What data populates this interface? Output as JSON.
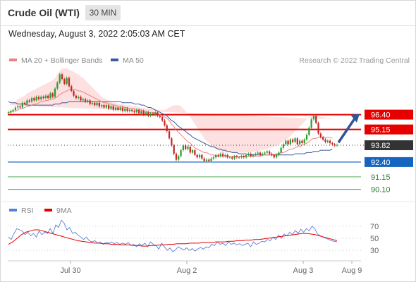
{
  "header": {
    "title": "Crude Oil (WTI)",
    "timeframe": "30 MIN"
  },
  "date_text": "Wednesday, August 3, 2022 2:05:03 AM CET",
  "copyright": "Research © 2022 Trading Central",
  "colors": {
    "ma20": "#f08080",
    "ma50": "#3d5a99",
    "band": "#fde0e0",
    "resistance": "#e60000",
    "support": "#1565c0",
    "target": "#4caf50",
    "current": "#333333",
    "rsi": "#5b7fd6",
    "rsi_ma": "#e60000",
    "arrow": "#2f5597"
  },
  "chart_data": [
    {
      "type": "candlestick",
      "legend": [
        {
          "label": "MA 20 + Bollinger Bands",
          "color": "#f08080"
        },
        {
          "label": "MA 50",
          "color": "#3d5a99"
        }
      ],
      "ylim": [
        89.6,
        100.3
      ],
      "x_ticks": [
        "Jul 30",
        "Aug 2",
        "Aug 3",
        "Aug 9"
      ],
      "levels": [
        {
          "value": 96.4,
          "label": "96.40",
          "kind": "resistance"
        },
        {
          "value": 95.15,
          "label": "95.15",
          "kind": "resistance"
        },
        {
          "value": 93.82,
          "label": "93.82",
          "kind": "current"
        },
        {
          "value": 92.4,
          "label": "92.40",
          "kind": "support"
        },
        {
          "value": 91.15,
          "label": "91.15",
          "kind": "target"
        },
        {
          "value": 90.1,
          "label": "90.10",
          "kind": "target"
        }
      ],
      "close": [
        96.6,
        96.7,
        96.8,
        97.0,
        97.1,
        97.0,
        97.4,
        97.3,
        97.6,
        97.5,
        97.8,
        97.6,
        97.9,
        97.7,
        97.9,
        97.8,
        98.0,
        97.8,
        98.2,
        97.9,
        98.6,
        99.1,
        99.8,
        99.4,
        99.0,
        99.5,
        98.8,
        98.4,
        98.0,
        97.8,
        97.9,
        97.6,
        97.7,
        97.5,
        97.6,
        97.3,
        97.4,
        97.2,
        97.4,
        97.1,
        97.2,
        97.0,
        97.2,
        96.9,
        97.1,
        96.8,
        97.0,
        96.8,
        97.0,
        96.7,
        96.9,
        96.7,
        96.8,
        96.7,
        96.6,
        96.8,
        96.5,
        96.7,
        96.4,
        96.6,
        96.3,
        96.5,
        96.4,
        96.6,
        96.3,
        96.2,
        95.9,
        95.5,
        95.0,
        94.4,
        93.8,
        93.1,
        92.6,
        92.9,
        93.4,
        93.8,
        93.5,
        93.7,
        93.2,
        93.4,
        93.0,
        92.8,
        93.0,
        92.7,
        92.5,
        92.6,
        92.5,
        92.7,
        92.8,
        93.0,
        92.9,
        93.1,
        92.9,
        93.0,
        92.8,
        92.8,
        92.7,
        92.9,
        92.8,
        92.8,
        92.9,
        92.8,
        93.0,
        93.1,
        92.9,
        93.0,
        93.1,
        93.2,
        93.0,
        93.1,
        93.2,
        93.3,
        93.1,
        93.0,
        92.8,
        93.0,
        93.2,
        93.6,
        93.9,
        94.2,
        93.9,
        94.3,
        94.1,
        94.4,
        93.9,
        94.2,
        94.0,
        94.3,
        94.7,
        95.3,
        96.0,
        96.3,
        95.7,
        94.8,
        94.5,
        94.3,
        94.1,
        94.2,
        94.0,
        93.9,
        93.8,
        93.85
      ],
      "ma20": [
        96.6,
        96.6,
        96.7,
        96.7,
        96.8,
        96.9,
        96.9,
        97.0,
        97.1,
        97.1,
        97.2,
        97.3,
        97.3,
        97.4,
        97.5,
        97.5,
        97.6,
        97.6,
        97.7,
        97.7,
        97.8,
        97.9,
        98.1,
        98.2,
        98.3,
        98.4,
        98.5,
        98.5,
        98.5,
        98.5,
        98.4,
        98.4,
        98.3,
        98.2,
        98.1,
        98.0,
        97.9,
        97.8,
        97.7,
        97.6,
        97.5,
        97.4,
        97.4,
        97.3,
        97.3,
        97.2,
        97.2,
        97.1,
        97.1,
        97.1,
        97.0,
        97.0,
        96.9,
        96.9,
        96.9,
        96.8,
        96.8,
        96.8,
        96.7,
        96.7,
        96.6,
        96.6,
        96.6,
        96.5,
        96.5,
        96.4,
        96.3,
        96.2,
        96.1,
        95.9,
        95.6,
        95.4,
        95.1,
        94.9,
        94.7,
        94.5,
        94.3,
        94.1,
        94.0,
        93.8,
        93.6,
        93.5,
        93.4,
        93.3,
        93.2,
        93.2,
        93.1,
        93.0,
        93.0,
        92.9,
        92.9,
        92.9,
        92.9,
        92.9,
        92.9,
        92.9,
        92.9,
        92.9,
        92.9,
        92.9,
        92.9,
        92.9,
        92.9,
        92.9,
        92.9,
        92.9,
        92.9,
        92.9,
        92.9,
        93.0,
        93.0,
        93.0,
        93.0,
        93.0,
        93.0,
        93.1,
        93.1,
        93.2,
        93.2,
        93.3,
        93.4,
        93.5,
        93.5,
        93.6,
        93.7,
        93.7,
        93.8,
        93.9,
        94.0,
        94.1,
        94.3,
        94.4,
        94.4,
        94.5,
        94.5,
        94.5,
        94.5,
        94.5,
        94.5,
        94.4
      ],
      "ma50": [
        97.5,
        97.4,
        97.4,
        97.4,
        97.3,
        97.3,
        97.3,
        97.3,
        97.2,
        97.2,
        97.2,
        97.2,
        97.2,
        97.2,
        97.2,
        97.2,
        97.2,
        97.2,
        97.2,
        97.2,
        97.3,
        97.3,
        97.3,
        97.4,
        97.4,
        97.4,
        97.5,
        97.5,
        97.5,
        97.5,
        97.5,
        97.5,
        97.5,
        97.5,
        97.5,
        97.5,
        97.5,
        97.5,
        97.5,
        97.5,
        97.5,
        97.5,
        97.5,
        97.5,
        97.5,
        97.5,
        97.5,
        97.5,
        97.5,
        97.4,
        97.4,
        97.4,
        97.4,
        97.4,
        97.3,
        97.3,
        97.3,
        97.2,
        97.2,
        97.1,
        97.0,
        97.0,
        96.9,
        96.8,
        96.7,
        96.6,
        96.5,
        96.4,
        96.3,
        96.1,
        95.9,
        95.8,
        95.6,
        95.4,
        95.3,
        95.1,
        95.0,
        94.8,
        94.7,
        94.5,
        94.4,
        94.3,
        94.2,
        94.1,
        94.0,
        93.9,
        93.8,
        93.7,
        93.7,
        93.6,
        93.5,
        93.5,
        93.4,
        93.4,
        93.3,
        93.3,
        93.2,
        93.2,
        93.2,
        93.1,
        93.1,
        93.1,
        93.1,
        93.0,
        93.0,
        93.0,
        93.0,
        93.0,
        93.0,
        93.0,
        93.0,
        93.0,
        93.0,
        93.0,
        93.0,
        93.0,
        93.0,
        93.0,
        93.0,
        93.0,
        93.0,
        93.0,
        93.0,
        93.1,
        93.1,
        93.1,
        93.1,
        93.1,
        93.2,
        93.2,
        93.2,
        93.3,
        93.3,
        93.3,
        93.4,
        93.4,
        93.4,
        93.4,
        93.4,
        93.5
      ],
      "bb_upper": [
        97.2,
        97.3,
        97.4,
        97.5,
        97.7,
        97.8,
        97.9,
        98.0,
        98.2,
        98.3,
        98.4,
        98.5,
        98.6,
        98.7,
        98.8,
        98.9,
        99.0,
        99.1,
        99.2,
        99.3,
        99.5,
        99.8,
        100.1,
        100.3,
        100.3,
        100.3,
        100.2,
        100.1,
        100.0,
        99.9,
        99.8,
        99.6,
        99.5,
        99.3,
        99.1,
        98.9,
        98.7,
        98.5,
        98.3,
        98.1,
        97.9,
        97.8,
        97.7,
        97.6,
        97.5,
        97.4,
        97.4,
        97.3,
        97.3,
        97.3,
        97.2,
        97.2,
        97.2,
        97.1,
        97.1,
        97.1,
        97.0,
        97.0,
        97.0,
        96.9,
        96.9,
        96.9,
        96.9,
        96.9,
        96.8,
        96.8,
        96.8,
        96.8,
        96.9,
        97.0,
        97.1,
        97.2,
        97.2,
        97.2,
        97.1,
        96.9,
        96.7,
        96.4,
        96.2,
        95.9,
        95.6,
        95.3,
        95.0,
        94.7,
        94.4,
        94.2,
        94.0,
        93.8,
        93.6,
        93.5,
        93.4,
        93.3,
        93.2,
        93.2,
        93.2,
        93.2,
        93.2,
        93.2,
        93.2,
        93.2,
        93.2,
        93.2,
        93.2,
        93.2,
        93.2,
        93.3,
        93.3,
        93.3,
        93.4,
        93.4,
        93.5,
        93.5,
        93.6,
        93.7,
        93.7,
        93.8,
        93.9,
        94.0,
        94.1,
        94.3,
        94.4,
        94.6,
        94.8,
        95.0,
        95.2,
        95.4,
        95.6,
        95.8,
        96.0,
        96.2,
        96.3,
        96.3,
        96.3,
        96.3,
        96.2,
        96.2,
        96.1,
        96.1,
        96.1,
        96.0
      ],
      "bb_lower": [
        96.0,
        95.9,
        96.0,
        95.9,
        95.9,
        96.0,
        95.9,
        96.0,
        96.0,
        95.9,
        96.0,
        96.1,
        96.0,
        96.1,
        96.2,
        96.1,
        96.2,
        96.1,
        96.2,
        96.1,
        96.1,
        96.0,
        96.1,
        96.1,
        96.3,
        96.5,
        96.8,
        96.9,
        97.0,
        97.1,
        97.0,
        97.2,
        97.1,
        97.1,
        97.1,
        97.1,
        97.1,
        97.1,
        97.1,
        97.1,
        97.1,
        97.0,
        97.1,
        97.0,
        97.1,
        97.0,
        97.0,
        96.9,
        96.9,
        96.9,
        96.8,
        96.8,
        96.6,
        96.7,
        96.7,
        96.5,
        96.6,
        96.6,
        96.4,
        96.5,
        96.3,
        96.3,
        96.3,
        96.1,
        96.2,
        96.0,
        95.8,
        95.6,
        95.3,
        94.8,
        94.1,
        93.6,
        93.0,
        92.6,
        92.3,
        92.1,
        91.9,
        91.8,
        91.8,
        91.7,
        91.6,
        91.7,
        91.8,
        91.9,
        92.0,
        92.2,
        92.2,
        92.2,
        92.4,
        92.3,
        92.4,
        92.5,
        92.6,
        92.6,
        92.6,
        92.6,
        92.6,
        92.6,
        92.6,
        92.6,
        92.6,
        92.6,
        92.6,
        92.6,
        92.6,
        92.5,
        92.5,
        92.5,
        92.4,
        92.6,
        92.5,
        92.5,
        92.4,
        92.3,
        92.3,
        92.4,
        92.3,
        92.4,
        92.3,
        92.3,
        92.4,
        92.4,
        92.2,
        92.2,
        92.2,
        92.0,
        92.0,
        92.0,
        92.0,
        92.0,
        92.3,
        92.6,
        92.5,
        92.7,
        92.7,
        92.7,
        92.8,
        92.8,
        92.9,
        92.8
      ]
    },
    {
      "type": "line",
      "legend": [
        {
          "label": "RSI",
          "color": "#5b7fd6"
        },
        {
          "label": "9MA",
          "color": "#e60000"
        }
      ],
      "ylim": [
        15,
        85
      ],
      "y_ticks": [
        "70",
        "50",
        "30"
      ],
      "series": [
        {
          "name": "RSI",
          "values": [
            52,
            48,
            58,
            66,
            64,
            62,
            56,
            60,
            54,
            58,
            52,
            62,
            56,
            60,
            58,
            66,
            58,
            72,
            68,
            80,
            75,
            64,
            68,
            58,
            60,
            55,
            52,
            48,
            52,
            46,
            44,
            46,
            42,
            44,
            40,
            43,
            42,
            44,
            41,
            43,
            40,
            42,
            40,
            43,
            38,
            40,
            36,
            41,
            38,
            42,
            36,
            44,
            40,
            38,
            32,
            42,
            36,
            30,
            34,
            28,
            31,
            36,
            33,
            31,
            34,
            30,
            33,
            29,
            32,
            35,
            32,
            36,
            34,
            40,
            38,
            44,
            40,
            42,
            38,
            44,
            40,
            42,
            39,
            41,
            38,
            40,
            42,
            36,
            44,
            40,
            42,
            45,
            44,
            48,
            46,
            52,
            48,
            55,
            50,
            57,
            54,
            60,
            56,
            63,
            58,
            65,
            60,
            66,
            62,
            70,
            66,
            57,
            54,
            52,
            50,
            48,
            46,
            45,
            44
          ]
        },
        {
          "name": "9MA",
          "values": [
            40,
            44,
            50,
            56,
            60,
            62,
            64,
            64,
            62,
            60,
            58,
            56,
            54,
            52,
            50,
            48,
            46,
            45,
            44,
            43,
            42,
            42,
            41,
            41,
            40,
            40,
            39,
            39,
            39,
            38,
            38,
            37,
            37,
            38,
            38,
            39,
            39,
            40,
            40,
            41,
            41,
            41,
            42,
            42,
            42,
            43,
            43,
            43,
            44,
            44,
            44,
            45,
            45,
            46,
            46,
            47,
            47,
            48,
            48,
            49,
            50,
            51,
            52,
            53,
            54,
            55,
            56,
            57,
            58,
            58,
            57,
            56,
            54,
            52,
            50,
            48,
            46
          ]
        }
      ]
    }
  ]
}
